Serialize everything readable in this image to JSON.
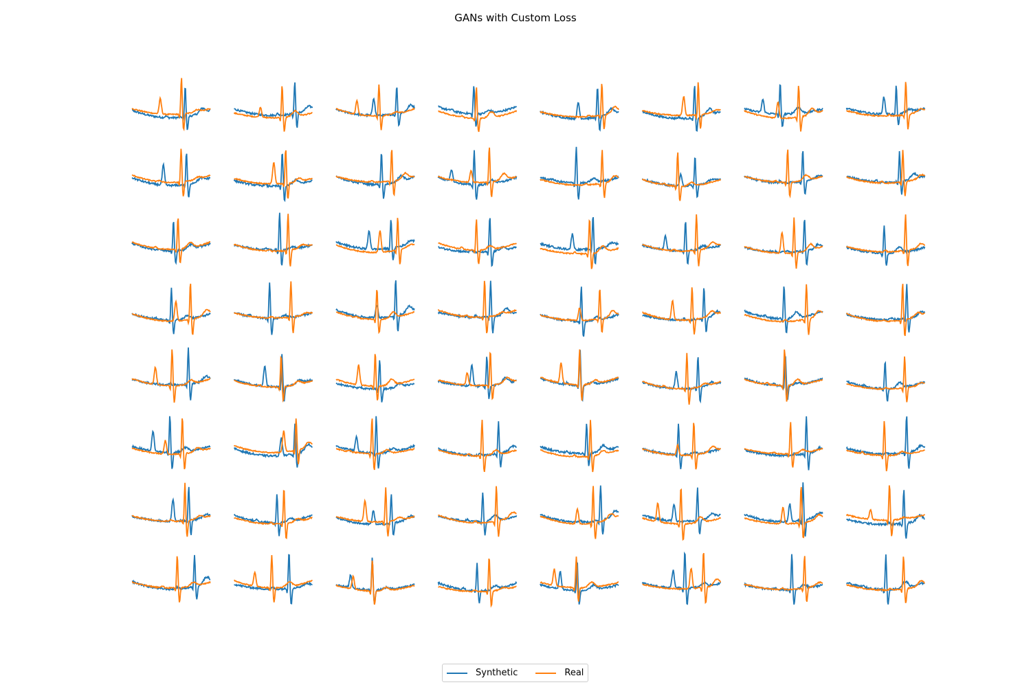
{
  "chart_data": {
    "type": "line",
    "title": "GANs with Custom Loss",
    "grid": false,
    "axes_visible": false,
    "layout": {
      "rows": 8,
      "cols": 8
    },
    "series": [
      {
        "name": "Synthetic",
        "color": "#1f77b4"
      },
      {
        "name": "Real",
        "color": "#ff7f0e"
      }
    ],
    "legend": {
      "placement": "bottom-center",
      "ncol": 2
    },
    "note_values": "64 subplots each showing one synthetic and one real ECG beat trace; axes hidden so numeric values are not legible"
  }
}
